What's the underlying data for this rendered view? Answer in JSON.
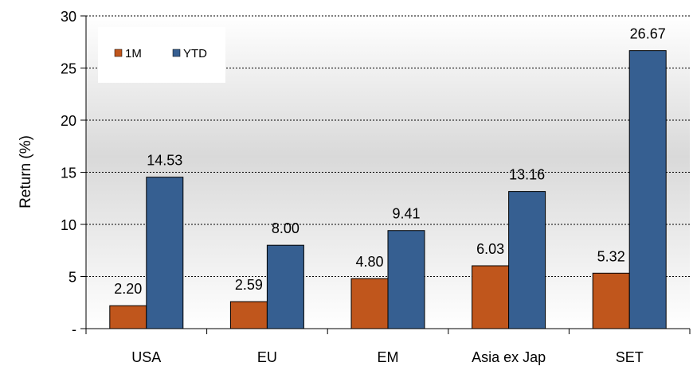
{
  "chart_data": {
    "type": "bar",
    "title": "",
    "xlabel": "",
    "ylabel": "Return (%)",
    "categories": [
      "USA",
      "EU",
      "EM",
      "Asia ex Jap",
      "SET"
    ],
    "series": [
      {
        "name": "1M",
        "values": [
          2.2,
          2.59,
          4.8,
          6.03,
          5.32
        ],
        "labels": [
          "2.20",
          "2.59",
          "4.80",
          "6.03",
          "5.32"
        ],
        "color": "#c0561c"
      },
      {
        "name": "YTD",
        "values": [
          14.53,
          8.0,
          9.41,
          13.16,
          26.67
        ],
        "labels": [
          "14.53",
          "8.00",
          "9.41",
          "13.16",
          "26.67"
        ],
        "color": "#365f91"
      }
    ],
    "ylim": [
      0,
      30
    ],
    "yticks": [
      0,
      5,
      10,
      15,
      20,
      25,
      30
    ],
    "ytick_labels": [
      "-",
      "5",
      "10",
      "15",
      "20",
      "25",
      "30"
    ],
    "grid": "horizontal dotted",
    "legend_position": "top-left",
    "background": "gray gradient"
  }
}
